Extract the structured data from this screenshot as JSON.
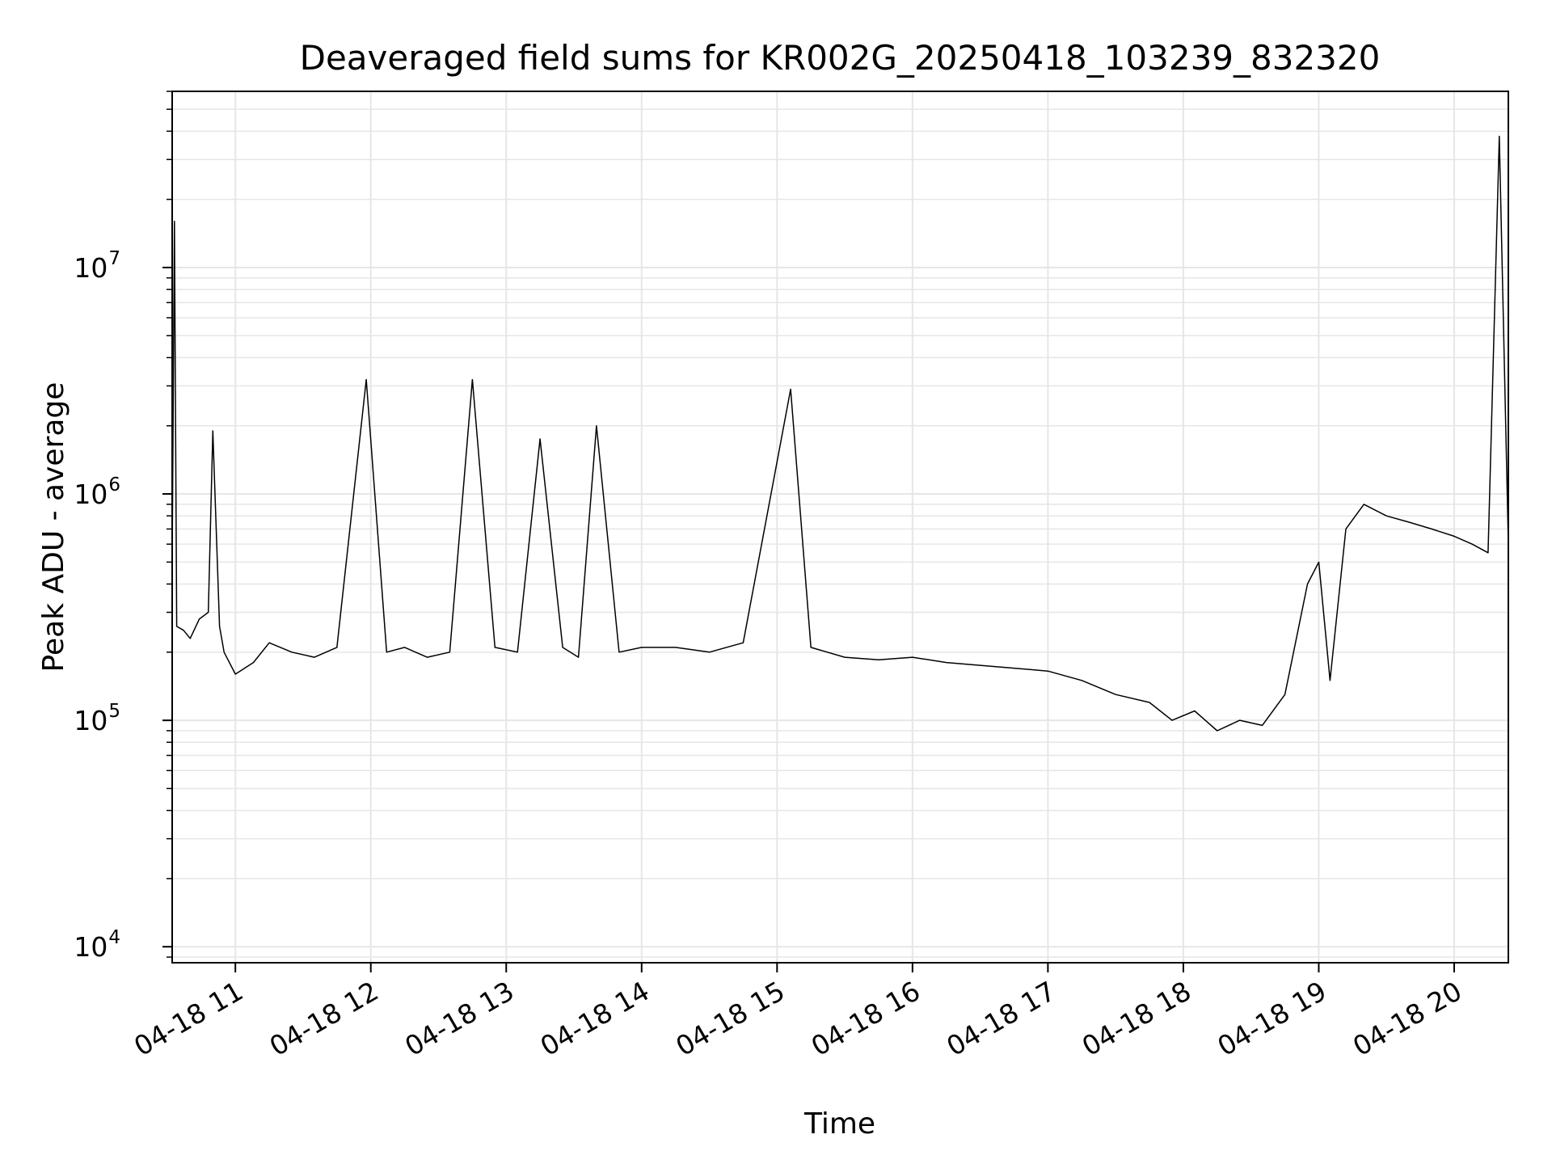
{
  "chart_data": {
    "type": "line",
    "title": "Deaveraged field sums for KR002G_20250418_103239_832320",
    "xlabel": "Time",
    "ylabel": "Peak ADU - average",
    "yscale": "log",
    "grid": "on (major and minor)",
    "x_tick_labels": [
      "04-18 11",
      "04-18 12",
      "04-18 13",
      "04-18 14",
      "04-18 15",
      "04-18 16",
      "04-18 17",
      "04-18 18",
      "04-18 19",
      "04-18 20"
    ],
    "x_ticks": [
      "2025-04-18 11:00",
      "2025-04-18 12:00",
      "2025-04-18 13:00",
      "2025-04-18 14:00",
      "2025-04-18 15:00",
      "2025-04-18 16:00",
      "2025-04-18 17:00",
      "2025-04-18 18:00",
      "2025-04-18 19:00",
      "2025-04-18 20:00"
    ],
    "x_tick_rotation_deg": 30,
    "xlim": [
      "2025-04-18 10:32",
      "2025-04-18 20:24"
    ],
    "y_tick_labels": [
      {
        "base": "10",
        "exp": "4"
      },
      {
        "base": "10",
        "exp": "5"
      },
      {
        "base": "10",
        "exp": "6"
      },
      {
        "base": "10",
        "exp": "7"
      }
    ],
    "ylim": [
      8500,
      60000000
    ],
    "line_color": "#000000",
    "grid_color": "#e6e6e6",
    "series": [
      {
        "x": [
          "2025-04-18 10:32",
          "2025-04-18 10:33",
          "2025-04-18 10:34",
          "2025-04-18 10:37",
          "2025-04-18 10:40",
          "2025-04-18 10:44",
          "2025-04-18 10:48",
          "2025-04-18 10:50",
          "2025-04-18 10:53",
          "2025-04-18 10:55",
          "2025-04-18 11:00",
          "2025-04-18 11:08",
          "2025-04-18 11:15",
          "2025-04-18 11:25",
          "2025-04-18 11:35",
          "2025-04-18 11:45",
          "2025-04-18 11:58",
          "2025-04-18 12:07",
          "2025-04-18 12:15",
          "2025-04-18 12:25",
          "2025-04-18 12:35",
          "2025-04-18 12:45",
          "2025-04-18 12:55",
          "2025-04-18 13:05",
          "2025-04-18 13:15",
          "2025-04-18 13:25",
          "2025-04-18 13:32",
          "2025-04-18 13:40",
          "2025-04-18 13:50",
          "2025-04-18 14:00",
          "2025-04-18 14:15",
          "2025-04-18 14:30",
          "2025-04-18 14:45",
          "2025-04-18 15:06",
          "2025-04-18 15:15",
          "2025-04-18 15:30",
          "2025-04-18 15:45",
          "2025-04-18 16:00",
          "2025-04-18 16:15",
          "2025-04-18 16:30",
          "2025-04-18 16:45",
          "2025-04-18 17:00",
          "2025-04-18 17:15",
          "2025-04-18 17:30",
          "2025-04-18 17:45",
          "2025-04-18 17:55",
          "2025-04-18 18:05",
          "2025-04-18 18:15",
          "2025-04-18 18:25",
          "2025-04-18 18:35",
          "2025-04-18 18:45",
          "2025-04-18 18:55",
          "2025-04-18 19:00",
          "2025-04-18 19:05",
          "2025-04-18 19:12",
          "2025-04-18 19:20",
          "2025-04-18 19:30",
          "2025-04-18 19:40",
          "2025-04-18 19:50",
          "2025-04-18 20:00",
          "2025-04-18 20:08",
          "2025-04-18 20:15",
          "2025-04-18 20:20",
          "2025-04-18 20:24"
        ],
        "y": [
          500000,
          16000000,
          260000,
          250000,
          230000,
          280000,
          300000,
          1900000,
          260000,
          200000,
          160000,
          180000,
          220000,
          200000,
          190000,
          210000,
          3200000,
          200000,
          210000,
          190000,
          200000,
          3200000,
          210000,
          200000,
          1750000,
          210000,
          190000,
          2000000,
          200000,
          210000,
          210000,
          200000,
          220000,
          2900000,
          210000,
          190000,
          185000,
          190000,
          180000,
          175000,
          170000,
          165000,
          150000,
          130000,
          120000,
          100000,
          110000,
          90000,
          100000,
          95000,
          130000,
          400000,
          500000,
          150000,
          700000,
          900000,
          800000,
          750000,
          700000,
          650000,
          600000,
          550000,
          38000000,
          600000
        ]
      }
    ]
  }
}
